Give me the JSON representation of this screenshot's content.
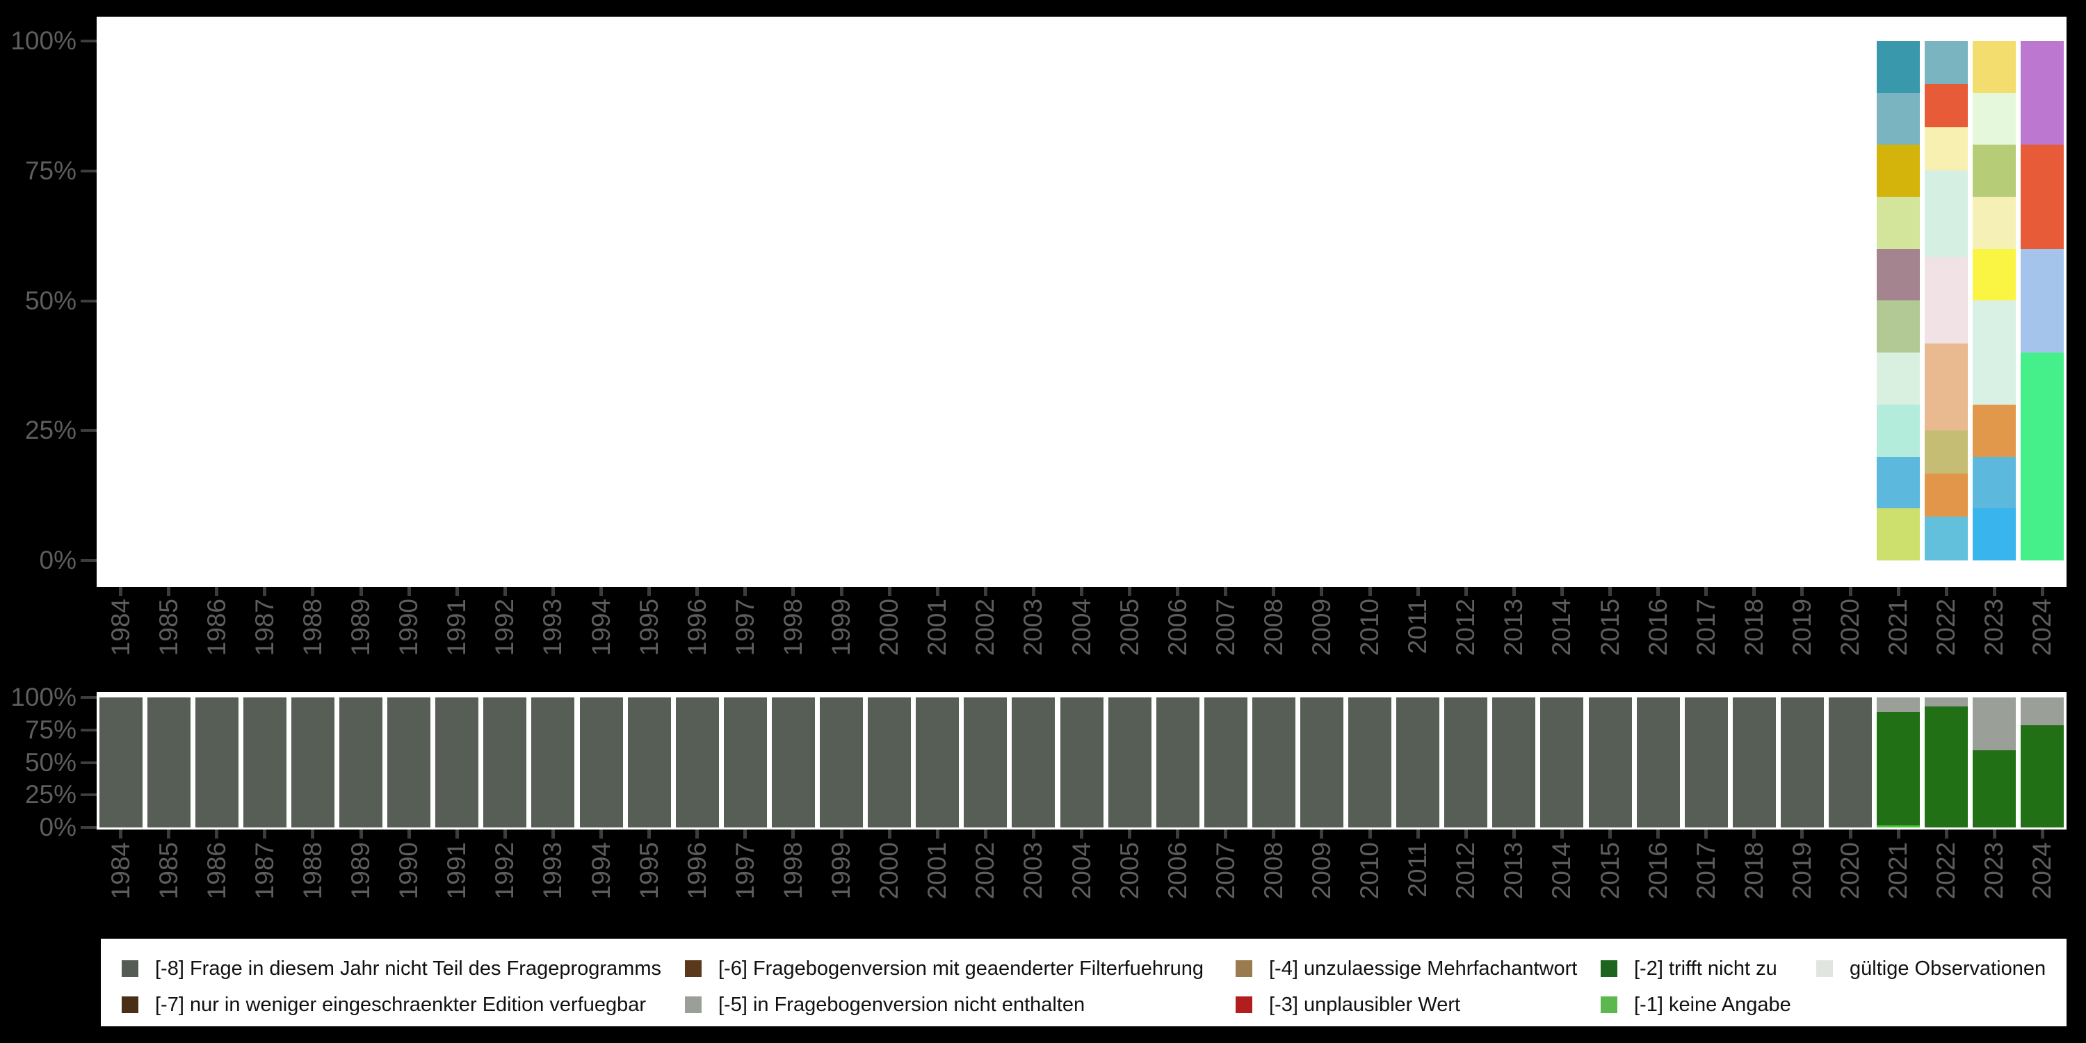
{
  "axes": {
    "y_tick_labels": [
      "100%",
      "75%",
      "50%",
      "25%",
      "0%"
    ],
    "label_color": "#5e5e5e",
    "tick_color": "#3d3d3d"
  },
  "years": [
    "1984",
    "1985",
    "1986",
    "1987",
    "1988",
    "1989",
    "1990",
    "1991",
    "1992",
    "1993",
    "1994",
    "1995",
    "1996",
    "1997",
    "1998",
    "1999",
    "2000",
    "2001",
    "2002",
    "2003",
    "2004",
    "2005",
    "2006",
    "2007",
    "2008",
    "2009",
    "2010",
    "2011",
    "2012",
    "2013",
    "2014",
    "2015",
    "2016",
    "2017",
    "2018",
    "2019",
    "2020",
    "2021",
    "2022",
    "2023",
    "2024"
  ],
  "chart_data": [
    {
      "name": "answer-category-distribution",
      "type": "bar",
      "subtype": "stacked-percent",
      "xlabel": "year",
      "ylabel": "",
      "ylim": [
        "0%",
        "100%"
      ],
      "grid": false,
      "note": "years 1984-2020 show no bars; segments listed top-to-bottom as [color, percent]",
      "bars": {
        "2021": [
          [
            "#3998ac",
            10
          ],
          [
            "#7ab4c1",
            10
          ],
          [
            "#d4b40a",
            10
          ],
          [
            "#d3e49b",
            10
          ],
          [
            "#a3848f",
            10
          ],
          [
            "#b2c995",
            10
          ],
          [
            "#d9f0e1",
            10
          ],
          [
            "#b4ecdb",
            10
          ],
          [
            "#5cb8dd",
            10
          ],
          [
            "#cde06e",
            10
          ]
        ],
        "2022": [
          [
            "#7ab4c1",
            8.3
          ],
          [
            "#e85b39",
            8.3
          ],
          [
            "#f8f0b1",
            8.3
          ],
          [
            "#d5f0e2",
            16.7
          ],
          [
            "#f0e2e5",
            16.7
          ],
          [
            "#e9ba90",
            16.7
          ],
          [
            "#c6bd75",
            8.3
          ],
          [
            "#e1964a",
            8.3
          ],
          [
            "#62c0dd",
            8.4
          ]
        ],
        "2023": [
          [
            "#f2dd6e",
            10
          ],
          [
            "#e6f8dc",
            10
          ],
          [
            "#b6cc76",
            10
          ],
          [
            "#f5f0b5",
            10
          ],
          [
            "#faf542",
            10
          ],
          [
            "#d9f0e4",
            20
          ],
          [
            "#e1984a",
            10
          ],
          [
            "#5cb8dd",
            10
          ],
          [
            "#3ab4ec",
            10
          ]
        ],
        "2024": [
          [
            "#bc77d1",
            20
          ],
          [
            "#e85b39",
            20
          ],
          [
            "#a5c4ec",
            20
          ],
          [
            "#45f08a",
            40
          ]
        ]
      }
    },
    {
      "name": "missing-codes-distribution",
      "type": "bar",
      "subtype": "stacked-percent",
      "xlabel": "year",
      "ylabel": "",
      "ylim": [
        "0%",
        "100%"
      ],
      "grid": false,
      "note": "segments listed top-to-bottom as [missing-code, percent]",
      "code_colors": {
        "-8": "#565e55",
        "-5": "#9aa097",
        "-2": "#217016",
        "-1": "#4cc13e"
      },
      "bars": {
        "1984": [
          [
            "-8",
            100
          ]
        ],
        "1985": [
          [
            "-8",
            100
          ]
        ],
        "1986": [
          [
            "-8",
            100
          ]
        ],
        "1987": [
          [
            "-8",
            100
          ]
        ],
        "1988": [
          [
            "-8",
            100
          ]
        ],
        "1989": [
          [
            "-8",
            100
          ]
        ],
        "1990": [
          [
            "-8",
            100
          ]
        ],
        "1991": [
          [
            "-8",
            100
          ]
        ],
        "1992": [
          [
            "-8",
            100
          ]
        ],
        "1993": [
          [
            "-8",
            100
          ]
        ],
        "1994": [
          [
            "-8",
            100
          ]
        ],
        "1995": [
          [
            "-8",
            100
          ]
        ],
        "1996": [
          [
            "-8",
            100
          ]
        ],
        "1997": [
          [
            "-8",
            100
          ]
        ],
        "1998": [
          [
            "-8",
            100
          ]
        ],
        "1999": [
          [
            "-8",
            100
          ]
        ],
        "2000": [
          [
            "-8",
            100
          ]
        ],
        "2001": [
          [
            "-8",
            100
          ]
        ],
        "2002": [
          [
            "-8",
            100
          ]
        ],
        "2003": [
          [
            "-8",
            100
          ]
        ],
        "2004": [
          [
            "-8",
            100
          ]
        ],
        "2005": [
          [
            "-8",
            100
          ]
        ],
        "2006": [
          [
            "-8",
            100
          ]
        ],
        "2007": [
          [
            "-8",
            100
          ]
        ],
        "2008": [
          [
            "-8",
            100
          ]
        ],
        "2009": [
          [
            "-8",
            100
          ]
        ],
        "2010": [
          [
            "-8",
            100
          ]
        ],
        "2011": [
          [
            "-8",
            100
          ]
        ],
        "2012": [
          [
            "-8",
            100
          ]
        ],
        "2013": [
          [
            "-8",
            100
          ]
        ],
        "2014": [
          [
            "-8",
            100
          ]
        ],
        "2015": [
          [
            "-8",
            100
          ]
        ],
        "2016": [
          [
            "-8",
            100
          ]
        ],
        "2017": [
          [
            "-8",
            100
          ]
        ],
        "2018": [
          [
            "-8",
            100
          ]
        ],
        "2019": [
          [
            "-8",
            100
          ]
        ],
        "2020": [
          [
            "-8",
            100
          ]
        ],
        "2021": [
          [
            "-5",
            11.2
          ],
          [
            "-2",
            87.2
          ],
          [
            "-1",
            1.6
          ]
        ],
        "2022": [
          [
            "-5",
            7
          ],
          [
            "-2",
            93
          ]
        ],
        "2023": [
          [
            "-5",
            40.6
          ],
          [
            "-2",
            59.4
          ]
        ],
        "2024": [
          [
            "-5",
            21.4
          ],
          [
            "-2",
            78.6
          ]
        ]
      }
    }
  ],
  "legend": {
    "background": "#ffffff",
    "entries": [
      {
        "label": "[-8] Frage in diesem Jahr nicht Teil des Frageprogramms",
        "color": "#545c54",
        "col": 0,
        "row": 0
      },
      {
        "label": "[-7] nur in weniger eingeschraenkter Edition verfuegbar",
        "color": "#4a2f17",
        "col": 0,
        "row": 1
      },
      {
        "label": "[-6] Fragebogenversion mit geaenderter Filterfuehrung",
        "color": "#59381b",
        "col": 1,
        "row": 0
      },
      {
        "label": "[-5] in Fragebogenversion nicht enthalten",
        "color": "#9aa097",
        "col": 1,
        "row": 1
      },
      {
        "label": "[-4] unzulaessige Mehrfachantwort",
        "color": "#9a7b4e",
        "col": 2,
        "row": 0
      },
      {
        "label": "[-3] unplausibler Wert",
        "color": "#b21e1e",
        "col": 2,
        "row": 1
      },
      {
        "label": "[-2] trifft nicht zu",
        "color": "#1e641e",
        "col": 3,
        "row": 0
      },
      {
        "label": "[-1] keine Angabe",
        "color": "#5cb84c",
        "col": 3,
        "row": 1
      },
      {
        "label": "gültige Observationen",
        "color": "#e1e5e0",
        "col": 4,
        "row": 0
      }
    ]
  }
}
